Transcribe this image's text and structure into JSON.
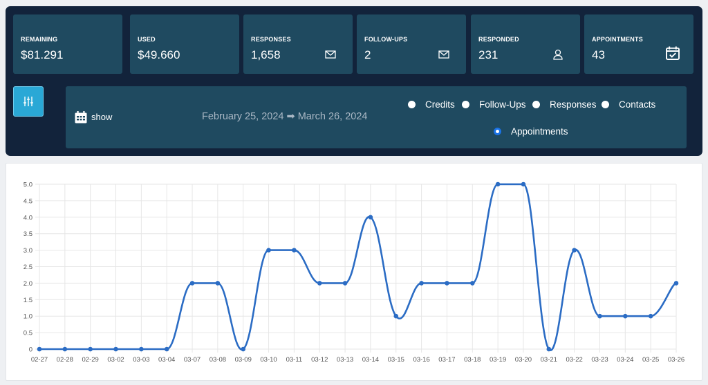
{
  "cards": [
    {
      "label": "REMAINING",
      "value": "$81.291",
      "icon": ""
    },
    {
      "label": "USED",
      "value": "$49.660",
      "icon": ""
    },
    {
      "label": "RESPONSES",
      "value": "1,658",
      "icon": "envelope-icon"
    },
    {
      "label": "FOLLOW-UPS",
      "value": "2",
      "icon": "envelope-icon"
    },
    {
      "label": "RESPONDED",
      "value": "231",
      "icon": "user-icon"
    },
    {
      "label": "APPOINTMENTS",
      "value": "43",
      "icon": "calendar-check-icon"
    }
  ],
  "filter": {
    "show_label": "show",
    "date_range": "February 25, 2024 ➡ March 26, 2024",
    "options": [
      {
        "label": "Credits",
        "selected": false
      },
      {
        "label": "Follow-Ups",
        "selected": false
      },
      {
        "label": "Responses",
        "selected": false
      },
      {
        "label": "Contacts",
        "selected": false
      },
      {
        "label": "Appointments",
        "selected": true
      }
    ]
  },
  "colors": {
    "line": "#2b6cc4",
    "panel": "#12233b",
    "card": "#1f4a60",
    "accent": "#2aa8d6"
  },
  "chart_data": {
    "type": "line",
    "x": [
      "02-27",
      "02-28",
      "02-29",
      "03-02",
      "03-03",
      "03-04",
      "03-07",
      "03-08",
      "03-09",
      "03-10",
      "03-11",
      "03-12",
      "03-13",
      "03-14",
      "03-15",
      "03-16",
      "03-17",
      "03-18",
      "03-19",
      "03-20",
      "03-21",
      "03-22",
      "03-23",
      "03-24",
      "03-25",
      "03-26"
    ],
    "series": [
      {
        "values": [
          0,
          0,
          0,
          0,
          0,
          0,
          2,
          2,
          0,
          3,
          3,
          2,
          2,
          4,
          1,
          2,
          2,
          2,
          5,
          5,
          0,
          3,
          1,
          1,
          1,
          2
        ]
      }
    ],
    "yticks": [
      "0",
      "0.5",
      "1.0",
      "1.5",
      "2.0",
      "2.5",
      "3.0",
      "3.5",
      "4.0",
      "4.5",
      "5.0"
    ],
    "ylim": [
      0,
      5
    ],
    "grid": true,
    "title": "",
    "xlabel": "",
    "ylabel": ""
  }
}
